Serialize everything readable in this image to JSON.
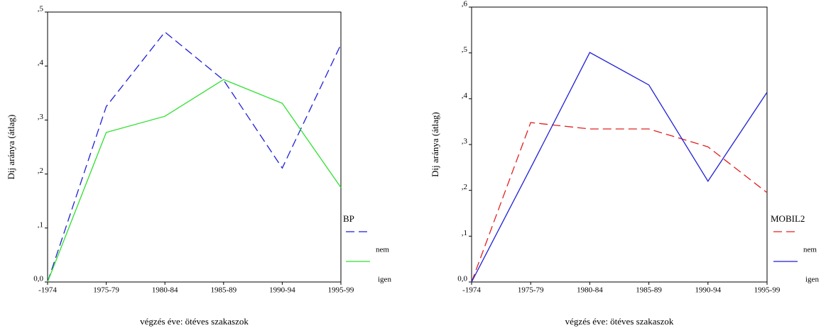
{
  "chart_data": [
    {
      "type": "line",
      "y_label": "Dij aránya (átlag)",
      "x_label": "végzés éve: ötéves szakaszok",
      "legend_title": "BP",
      "categories": [
        "-1974",
        "1975-79",
        "1980-84",
        "1985-89",
        "1990-94",
        "1995-99"
      ],
      "series": [
        {
          "name": "nem",
          "color": "#1f1fd6",
          "dashed": true,
          "values": [
            0,
            0.325,
            0.463,
            0.374,
            0.211,
            0.44
          ]
        },
        {
          "name": "igen",
          "color": "#2ee02e",
          "dashed": false,
          "values": [
            0,
            0.277,
            0.307,
            0.375,
            0.331,
            0.175
          ]
        }
      ],
      "ylim": [
        0,
        0.5
      ],
      "yticks": [
        {
          "value": 0,
          "label": "0,0"
        },
        {
          "value": 0.1,
          "label": ",1"
        },
        {
          "value": 0.2,
          "label": ",2"
        },
        {
          "value": 0.3,
          "label": ",3"
        },
        {
          "value": 0.4,
          "label": ",4"
        },
        {
          "value": 0.5,
          "label": ",5"
        }
      ]
    },
    {
      "type": "line",
      "y_label": "Dij aránya (átlag)",
      "x_label": "végzés éve: ötéves szakaszok",
      "legend_title": "MOBIL2",
      "categories": [
        "-1974",
        "1975-79",
        "1980-84",
        "1985-89",
        "1990-94",
        "1995-99"
      ],
      "series": [
        {
          "name": "nem",
          "color": "#e02020",
          "dashed": true,
          "values": [
            0,
            0.348,
            0.334,
            0.334,
            0.295,
            0.195
          ]
        },
        {
          "name": "igen",
          "color": "#1f1fd6",
          "dashed": false,
          "values": [
            0,
            0.249,
            0.501,
            0.43,
            0.22,
            0.414
          ]
        }
      ],
      "ylim": [
        0,
        0.6
      ],
      "yticks": [
        {
          "value": 0,
          "label": "0,0"
        },
        {
          "value": 0.1,
          "label": ",1"
        },
        {
          "value": 0.2,
          "label": ",2"
        },
        {
          "value": 0.3,
          "label": ",3"
        },
        {
          "value": 0.4,
          "label": ",4"
        },
        {
          "value": 0.5,
          "label": ",5"
        },
        {
          "value": 0.6,
          "label": ",6"
        }
      ]
    }
  ]
}
